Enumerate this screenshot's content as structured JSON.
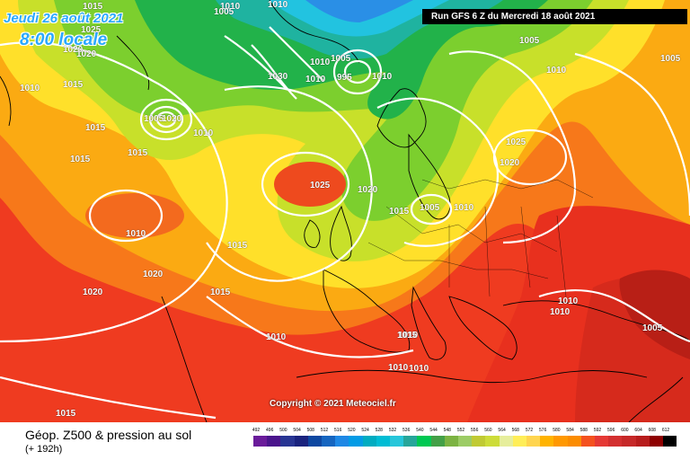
{
  "header": {
    "date_line": "Jeudi 26 août 2021",
    "time_line": "8:00 locale",
    "run_info": "Run GFS 6 Z du Mercredi 18 août 2021"
  },
  "copyright": "Copyright © 2021 Meteociel.fr",
  "footer": {
    "title": "Géop. Z500 & pression au sol",
    "subtitle": "(+ 192h)"
  },
  "scale": {
    "labels": [
      "492",
      "496",
      "500",
      "504",
      "508",
      "512",
      "516",
      "520",
      "524",
      "528",
      "532",
      "536",
      "540",
      "544",
      "548",
      "552",
      "556",
      "560",
      "564",
      "568",
      "572",
      "576",
      "580",
      "584",
      "588",
      "592",
      "596",
      "600",
      "604",
      "608",
      "612"
    ],
    "colors": [
      "#6a1b9a",
      "#4a148c",
      "#283593",
      "#1a237e",
      "#0d47a1",
      "#1565c0",
      "#1e88e5",
      "#039be5",
      "#00acc1",
      "#00bcd4",
      "#26c6da",
      "#26a69a",
      "#00c853",
      "#43a047",
      "#7cb342",
      "#9ccc65",
      "#c0ca33",
      "#cddc39",
      "#e6ee9c",
      "#ffee58",
      "#ffd54f",
      "#ffb300",
      "#ff9800",
      "#fb8c00",
      "#f4511e",
      "#e53935",
      "#d32f2f",
      "#c62828",
      "#b71c1c",
      "#8e0000",
      "#000000"
    ]
  },
  "isobars": [
    {
      "value": "1015"
    },
    {
      "value": "1020"
    },
    {
      "value": "1025"
    },
    {
      "value": "1010"
    },
    {
      "value": "1010"
    },
    {
      "value": "1005"
    },
    {
      "value": "1010"
    },
    {
      "value": "1015"
    },
    {
      "value": "1020"
    },
    {
      "value": "1010"
    },
    {
      "value": "1015"
    },
    {
      "value": "1005"
    },
    {
      "value": "1020"
    },
    {
      "value": "1010"
    },
    {
      "value": "1015"
    },
    {
      "value": "1015"
    },
    {
      "value": "1015"
    },
    {
      "value": "1010"
    },
    {
      "value": "1030"
    },
    {
      "value": "1010"
    },
    {
      "value": "995"
    },
    {
      "value": "1010"
    },
    {
      "value": "1020"
    },
    {
      "value": "1005"
    },
    {
      "value": "1025"
    },
    {
      "value": "1020"
    },
    {
      "value": "1015"
    },
    {
      "value": "1005"
    },
    {
      "value": "1010"
    },
    {
      "value": "1005"
    },
    {
      "value": "1010"
    },
    {
      "value": "1005"
    },
    {
      "value": "1025"
    },
    {
      "value": "1020"
    },
    {
      "value": "1015"
    },
    {
      "value": "1020"
    },
    {
      "value": "1010"
    },
    {
      "value": "1010"
    },
    {
      "value": "1010"
    },
    {
      "value": "1010"
    },
    {
      "value": "1010"
    },
    {
      "value": "1005"
    },
    {
      "value": "1015"
    },
    {
      "value": "1010"
    },
    {
      "value": "1015"
    }
  ]
}
